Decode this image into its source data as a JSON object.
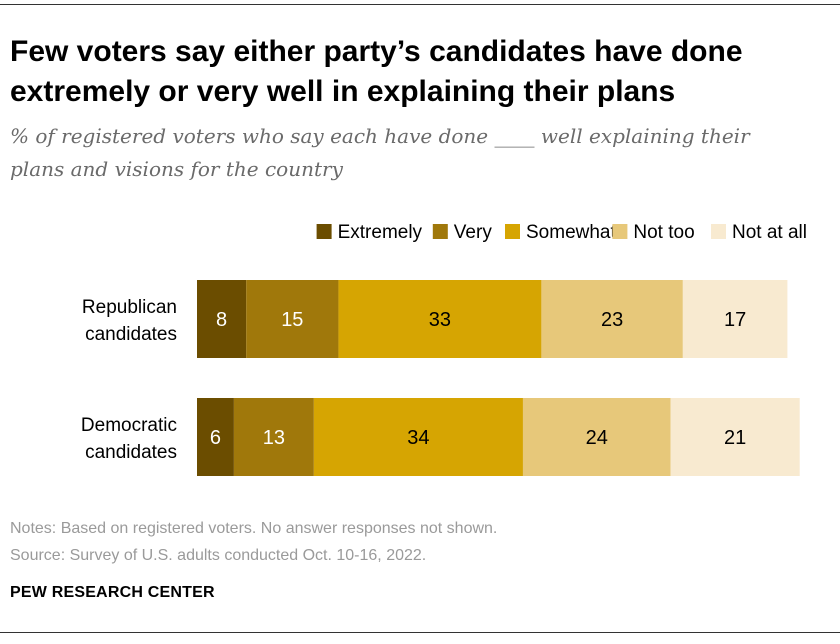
{
  "header": {
    "title": "Few voters say either party’s candidates have done extremely or very well in explaining their plans",
    "subtitle": "% of registered voters who say each have done ____ well explaining their plans and visions for the country"
  },
  "chart_data": {
    "type": "bar",
    "orientation": "horizontal",
    "stacked": true,
    "categories": [
      "Republican candidates",
      "Democratic candidates"
    ],
    "category_lines": [
      [
        "Republican",
        "candidates"
      ],
      [
        "Democratic",
        "candidates"
      ]
    ],
    "series": [
      {
        "name": "Extremely",
        "color": "#6b4d00",
        "label_color": "#ffffff",
        "values": [
          8,
          6
        ]
      },
      {
        "name": "Very",
        "color": "#a0780b",
        "label_color": "#ffffff",
        "values": [
          15,
          13
        ]
      },
      {
        "name": "Somewhat",
        "color": "#d6a502",
        "label_color": "#000000",
        "values": [
          33,
          34
        ]
      },
      {
        "name": "Not too",
        "color": "#e7c87a",
        "label_color": "#000000",
        "values": [
          23,
          24
        ]
      },
      {
        "name": "Not at all",
        "color": "#f8ead0",
        "label_color": "#000000",
        "values": [
          17,
          21
        ]
      }
    ],
    "legend_position": "top",
    "grid": false
  },
  "footer": {
    "notes": "Notes: Based on registered voters. No answer responses not shown.",
    "source": "Source: Survey of U.S. adults conducted Oct. 10-16, 2022.",
    "brand": "PEW RESEARCH CENTER"
  }
}
